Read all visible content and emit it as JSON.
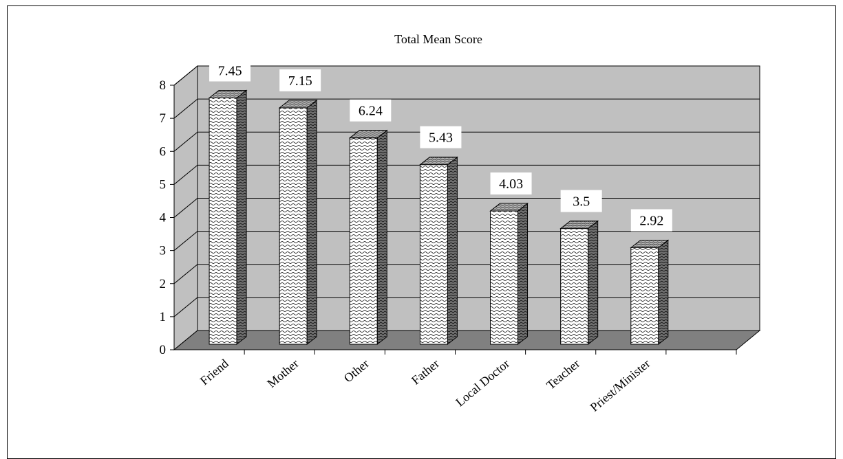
{
  "chart_data": {
    "type": "bar",
    "title": "Total Mean Score",
    "categories": [
      "Friend",
      "Mother",
      "Other",
      "Father",
      "Local Doctor",
      "Teacher",
      "Priest/Minister"
    ],
    "values": [
      7.45,
      7.15,
      6.24,
      5.43,
      4.03,
      3.5,
      2.92
    ],
    "data_labels": [
      "7.45",
      "7.15",
      "6.24",
      "5.43",
      "4.03",
      "3.5",
      "2.92"
    ],
    "ylim": [
      0,
      8
    ],
    "yticks": [
      "0",
      "1",
      "2",
      "3",
      "4",
      "5",
      "6",
      "7",
      "8"
    ],
    "xlabel": "",
    "ylabel": "",
    "grid": true,
    "three_d": true,
    "colors": {
      "wall": "#c0c0c0",
      "floor": "#808080",
      "bar_face": "#ffffff",
      "bar_side": "#6e6e6e",
      "bar_top": "#b4b4b4",
      "ink": "#000000"
    }
  }
}
